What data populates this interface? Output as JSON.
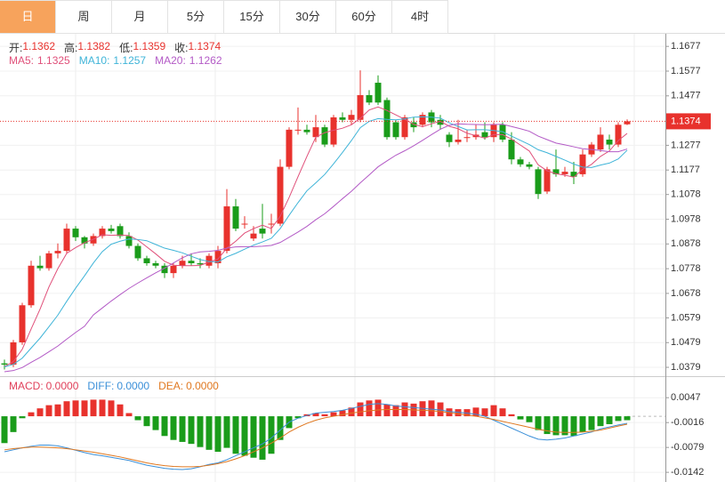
{
  "tabs": [
    "日",
    "周",
    "月",
    "5分",
    "15分",
    "30分",
    "60分",
    "4时"
  ],
  "active_tab": 0,
  "chart_data": [
    {
      "type": "candlestick",
      "ohlc_labels": [
        "开:",
        "高:",
        "低:",
        "收:"
      ],
      "up_color": "#e8322d",
      "down_color": "#1a9c1a",
      "grid": true,
      "last_price_line": true,
      "ylim": [
        1.0354,
        1.1728
      ],
      "yticks": [
        1.1677,
        1.1577,
        1.1477,
        1.1277,
        1.1177,
        1.1078,
        1.0978,
        1.0878,
        1.0778,
        1.0678,
        1.0579,
        1.0479,
        1.0379
      ],
      "open": [
        1.0395,
        1.039,
        1.048,
        1.063,
        1.079,
        1.078,
        1.084,
        1.085,
        1.094,
        1.0905,
        1.088,
        1.091,
        1.094,
        1.095,
        1.091,
        1.087,
        1.082,
        1.08,
        1.079,
        1.076,
        1.079,
        1.081,
        1.08,
        1.079,
        1.08,
        1.085,
        1.103,
        1.096,
        1.09,
        1.094,
        1.096,
        1.096,
        1.119,
        1.134,
        1.134,
        1.131,
        1.135,
        1.128,
        1.139,
        1.138,
        1.138,
        1.148,
        1.153,
        1.146,
        1.137,
        1.131,
        1.137,
        1.136,
        1.141,
        1.138,
        1.132,
        1.129,
        1.131,
        1.131,
        1.133,
        1.131,
        1.136,
        1.13,
        1.122,
        1.12,
        1.118,
        1.109,
        1.118,
        1.116,
        1.117,
        1.116,
        1.124,
        1.126,
        1.13,
        1.128,
        1.1362
      ],
      "high": [
        1.041,
        1.049,
        1.064,
        1.081,
        1.083,
        1.085,
        1.088,
        1.096,
        1.095,
        1.091,
        1.092,
        1.095,
        1.0955,
        1.096,
        1.0925,
        1.088,
        1.083,
        1.081,
        1.08,
        1.08,
        1.083,
        1.084,
        1.082,
        1.084,
        1.087,
        1.11,
        1.106,
        1.099,
        1.095,
        1.104,
        1.1,
        1.122,
        1.135,
        1.143,
        1.136,
        1.14,
        1.136,
        1.14,
        1.141,
        1.142,
        1.158,
        1.15,
        1.156,
        1.147,
        1.138,
        1.14,
        1.139,
        1.141,
        1.142,
        1.14,
        1.133,
        1.138,
        1.134,
        1.136,
        1.137,
        1.137,
        1.137,
        1.133,
        1.123,
        1.121,
        1.119,
        1.119,
        1.126,
        1.119,
        1.121,
        1.126,
        1.129,
        1.135,
        1.132,
        1.137,
        1.1382
      ],
      "low": [
        1.037,
        1.038,
        1.047,
        1.062,
        1.077,
        1.077,
        1.082,
        1.084,
        1.089,
        1.086,
        1.087,
        1.09,
        1.092,
        1.09,
        1.086,
        1.081,
        1.079,
        1.078,
        1.074,
        1.074,
        1.078,
        1.079,
        1.078,
        1.078,
        1.078,
        1.084,
        1.093,
        1.094,
        1.089,
        1.09,
        1.092,
        1.095,
        1.118,
        1.132,
        1.132,
        1.129,
        1.127,
        1.127,
        1.137,
        1.136,
        1.137,
        1.144,
        1.144,
        1.13,
        1.13,
        1.13,
        1.133,
        1.135,
        1.135,
        1.134,
        1.127,
        1.128,
        1.129,
        1.13,
        1.13,
        1.129,
        1.129,
        1.12,
        1.119,
        1.118,
        1.106,
        1.108,
        1.115,
        1.115,
        1.112,
        1.115,
        1.123,
        1.125,
        1.126,
        1.127,
        1.1359
      ],
      "close": [
        1.039,
        1.048,
        1.063,
        1.079,
        1.078,
        1.084,
        1.085,
        1.094,
        1.0905,
        1.088,
        1.091,
        1.094,
        1.093,
        1.091,
        1.087,
        1.082,
        1.08,
        1.079,
        1.076,
        1.079,
        1.081,
        1.08,
        1.0795,
        1.083,
        1.085,
        1.103,
        1.094,
        1.096,
        1.092,
        1.092,
        1.096,
        1.119,
        1.134,
        1.134,
        1.133,
        1.135,
        1.128,
        1.139,
        1.138,
        1.14,
        1.148,
        1.145,
        1.145,
        1.131,
        1.131,
        1.139,
        1.135,
        1.14,
        1.137,
        1.136,
        1.129,
        1.13,
        1.131,
        1.132,
        1.131,
        1.136,
        1.13,
        1.122,
        1.12,
        1.119,
        1.108,
        1.118,
        1.116,
        1.117,
        1.115,
        1.124,
        1.128,
        1.132,
        1.128,
        1.136,
        1.1374
      ],
      "series": [
        {
          "name": "MA5:",
          "color": "#e0507a",
          "values": [
            1.0382,
            1.0402,
            1.0452,
            1.0534,
            1.0614,
            1.0704,
            1.0778,
            1.084,
            1.0863,
            1.0883,
            1.0897,
            1.0915,
            1.0913,
            1.0914,
            1.0912,
            1.0894,
            1.0866,
            1.0838,
            1.0808,
            1.0792,
            1.079,
            1.079,
            1.0791,
            1.0805,
            1.0817,
            1.0861,
            1.0889,
            1.0922,
            1.094,
            1.0954,
            1.094,
            1.099,
            1.1066,
            1.115,
            1.1232,
            1.131,
            1.1328,
            1.1338,
            1.1346,
            1.136,
            1.1386,
            1.142,
            1.1432,
            1.1418,
            1.14,
            1.1382,
            1.1362,
            1.1352,
            1.1364,
            1.1374,
            1.1354,
            1.1344,
            1.1326,
            1.1316,
            1.1306,
            1.132,
            1.132,
            1.1302,
            1.1278,
            1.1254,
            1.1198,
            1.1174,
            1.1162,
            1.1156,
            1.1148,
            1.118,
            1.12,
            1.1232,
            1.1254,
            1.1296,
            1.1325
          ]
        },
        {
          "name": "MA10:",
          "color": "#3fb4d8",
          "values": [
            1.0381,
            1.0391,
            1.0416,
            1.0457,
            1.0497,
            1.0543,
            1.059,
            1.0646,
            1.0699,
            1.0749,
            1.0801,
            1.0847,
            1.0877,
            1.0889,
            1.0898,
            1.0896,
            1.0891,
            1.0876,
            1.0861,
            1.0852,
            1.0842,
            1.0828,
            1.0815,
            1.0807,
            1.0805,
            1.0826,
            1.084,
            1.0857,
            1.0873,
            1.0886,
            1.0901,
            1.094,
            1.0994,
            1.1045,
            1.1093,
            1.1125,
            1.1159,
            1.1202,
            1.1248,
            1.1296,
            1.1348,
            1.1374,
            1.1385,
            1.1382,
            1.138,
            1.1384,
            1.1391,
            1.1392,
            1.1391,
            1.1387,
            1.1368,
            1.1353,
            1.1339,
            1.134,
            1.134,
            1.1337,
            1.1332,
            1.1314,
            1.1297,
            1.128,
            1.1259,
            1.1247,
            1.1232,
            1.1217,
            1.1201,
            1.1189,
            1.1187,
            1.1197,
            1.1205,
            1.1222,
            1.1257
          ]
        },
        {
          "name": "MA20:",
          "color": "#b35ac6",
          "values": [
            1.0361,
            1.0366,
            1.0378,
            1.0399,
            1.0419,
            1.0442,
            1.0465,
            1.0493,
            1.052,
            1.0545,
            1.0591,
            1.0619,
            1.0647,
            1.0673,
            1.0698,
            1.072,
            1.0741,
            1.0761,
            1.078,
            1.0801,
            1.0822,
            1.0838,
            1.0846,
            1.0848,
            1.0852,
            1.0861,
            1.0866,
            1.0867,
            1.0867,
            1.0869,
            1.0872,
            1.0884,
            1.0905,
            1.0926,
            1.0949,
            1.0976,
            1.1,
            1.103,
            1.1061,
            1.1091,
            1.1125,
            1.1157,
            1.119,
            1.1214,
            1.1237,
            1.1255,
            1.1275,
            1.1297,
            1.132,
            1.1342,
            1.1358,
            1.1364,
            1.1362,
            1.1361,
            1.136,
            1.1361,
            1.1362,
            1.1353,
            1.1344,
            1.1334,
            1.1314,
            1.13,
            1.1286,
            1.1279,
            1.1271,
            1.1263,
            1.126,
            1.1256,
            1.1251,
            1.1251,
            1.1262
          ]
        }
      ]
    },
    {
      "type": "macd",
      "up_color": "#e8322d",
      "down_color": "#1a9c1a",
      "grid": true,
      "ylim": [
        -0.0162,
        0.0097
      ],
      "yticks": [
        0.0047,
        -0.0016,
        -0.0079,
        -0.0142
      ],
      "legend": [
        {
          "name": "MACD:",
          "value_label": "0.0000",
          "color": "#e0405a"
        },
        {
          "name": "DIFF:",
          "value_label": "0.0000",
          "color": "#3a8fd8"
        },
        {
          "name": "DEA:",
          "value_label": "0.0000",
          "color": "#e07820"
        }
      ],
      "values": [
        -0.0068,
        -0.004,
        -0.0005,
        0.001,
        0.002,
        0.0028,
        0.003,
        0.0038,
        0.004,
        0.004,
        0.0042,
        0.0042,
        0.004,
        0.003,
        0.0008,
        -0.001,
        -0.0025,
        -0.0035,
        -0.005,
        -0.006,
        -0.0065,
        -0.007,
        -0.0078,
        -0.0085,
        -0.009,
        -0.008,
        -0.0095,
        -0.01,
        -0.0105,
        -0.011,
        -0.0095,
        -0.006,
        -0.003,
        -0.0005,
        0.0005,
        0.0008,
        0.0005,
        0.001,
        0.0015,
        0.0022,
        0.0035,
        0.004,
        0.0042,
        0.003,
        0.0028,
        0.0035,
        0.0032,
        0.0038,
        0.004,
        0.0035,
        0.002,
        0.0018,
        0.0018,
        0.0022,
        0.002,
        0.0028,
        0.002,
        0.0005,
        -0.0008,
        -0.0015,
        -0.0035,
        -0.0045,
        -0.0048,
        -0.0048,
        -0.005,
        -0.004,
        -0.0035,
        -0.0025,
        -0.002,
        -0.0012,
        -0.001
      ],
      "series": [
        {
          "color": "#3a8fd8",
          "values": [
            -0.009,
            -0.0085,
            -0.008,
            -0.0076,
            -0.0073,
            -0.0073,
            -0.0075,
            -0.008,
            -0.0086,
            -0.0092,
            -0.0097,
            -0.01,
            -0.0104,
            -0.0108,
            -0.0112,
            -0.0118,
            -0.0124,
            -0.0128,
            -0.0132,
            -0.0134,
            -0.0135,
            -0.0133,
            -0.0128,
            -0.0122,
            -0.0118,
            -0.011,
            -0.01,
            -0.009,
            -0.008,
            -0.007,
            -0.0055,
            -0.0035,
            -0.0015,
            -0.0005,
            0.0002,
            0.0008,
            0.001,
            0.0012,
            0.0015,
            0.002,
            0.0025,
            0.003,
            0.0032,
            0.003,
            0.0026,
            0.0024,
            0.0022,
            0.002,
            0.0018,
            0.0016,
            0.0012,
            0.001,
            0.0008,
            0.0005,
            0.0,
            -0.001,
            -0.002,
            -0.003,
            -0.004,
            -0.005,
            -0.0058,
            -0.006,
            -0.0058,
            -0.0055,
            -0.005,
            -0.0045,
            -0.004,
            -0.0032,
            -0.0027,
            -0.0022,
            -0.0018
          ]
        },
        {
          "color": "#e07820",
          "values": [
            -0.0085,
            -0.0082,
            -0.008,
            -0.0078,
            -0.0078,
            -0.0079,
            -0.008,
            -0.0082,
            -0.0085,
            -0.0088,
            -0.0091,
            -0.0095,
            -0.0099,
            -0.0103,
            -0.0108,
            -0.0113,
            -0.0118,
            -0.0122,
            -0.0125,
            -0.0127,
            -0.0128,
            -0.0128,
            -0.0127,
            -0.0124,
            -0.012,
            -0.0115,
            -0.0108,
            -0.01,
            -0.009,
            -0.008,
            -0.0068,
            -0.0055,
            -0.004,
            -0.0028,
            -0.0018,
            -0.001,
            -0.0004,
            0.0,
            0.0004,
            0.0008,
            0.0011,
            0.0014,
            0.0016,
            0.0017,
            0.0017,
            0.0017,
            0.0016,
            0.0015,
            0.0014,
            0.0012,
            0.0009,
            0.0006,
            0.0003,
            0.0,
            -0.0004,
            -0.0008,
            -0.0013,
            -0.0018,
            -0.0023,
            -0.0028,
            -0.0033,
            -0.0037,
            -0.004,
            -0.0041,
            -0.0041,
            -0.004,
            -0.0038,
            -0.0035,
            -0.003,
            -0.0025,
            -0.002
          ]
        }
      ]
    }
  ]
}
